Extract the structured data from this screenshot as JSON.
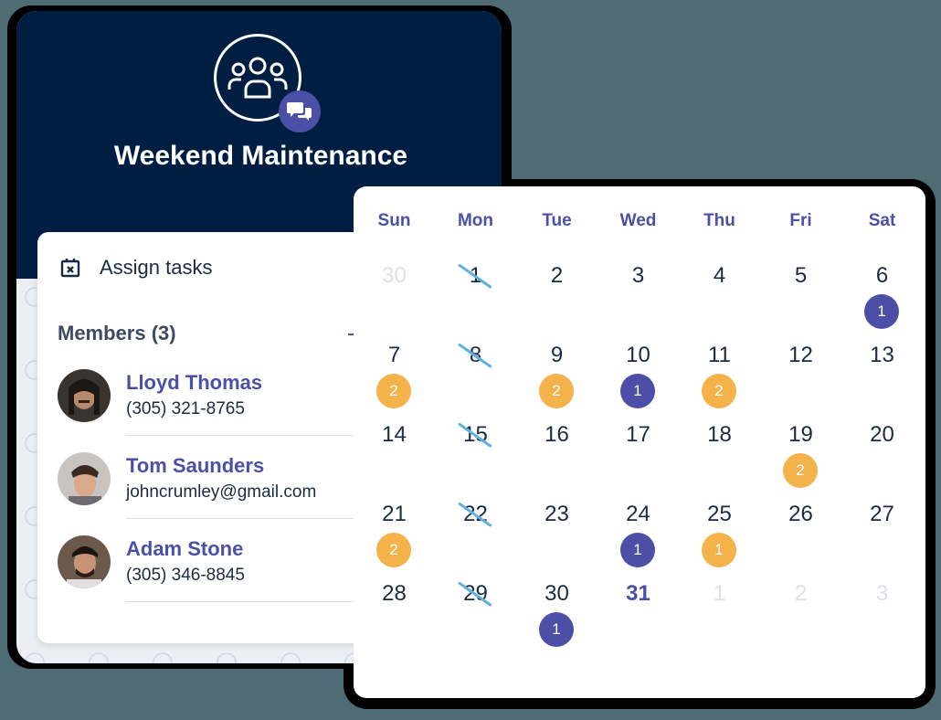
{
  "team": {
    "title": "Weekend Maintenance",
    "icon": "group-icon",
    "badge_icon": "chat-bubbles-icon"
  },
  "card": {
    "assign_label": "Assign tasks",
    "assign_icon": "calendar-x-icon",
    "members_heading": "Members (3)",
    "members": [
      {
        "name": "Lloyd Thomas",
        "contact": "(305) 321-8765"
      },
      {
        "name": "Tom Saunders",
        "contact": "johncrumley@gmail.com"
      },
      {
        "name": "Adam Stone",
        "contact": "(305) 346-8845"
      }
    ]
  },
  "calendar": {
    "weekdays": [
      "Sun",
      "Mon",
      "Tue",
      "Wed",
      "Thu",
      "Fri",
      "Sat"
    ],
    "weeks": [
      [
        {
          "d": "30",
          "muted": true
        },
        {
          "d": "1",
          "strike": true
        },
        {
          "d": "2"
        },
        {
          "d": "3"
        },
        {
          "d": "4"
        },
        {
          "d": "5"
        },
        {
          "d": "6",
          "badge": "1",
          "color": "purple"
        }
      ],
      [
        {
          "d": "7",
          "badge": "2",
          "color": "orange"
        },
        {
          "d": "8",
          "strike": true
        },
        {
          "d": "9",
          "badge": "2",
          "color": "orange"
        },
        {
          "d": "10",
          "badge": "1",
          "color": "purple"
        },
        {
          "d": "11",
          "badge": "2",
          "color": "orange"
        },
        {
          "d": "12"
        },
        {
          "d": "13"
        }
      ],
      [
        {
          "d": "14"
        },
        {
          "d": "15",
          "strike": true
        },
        {
          "d": "16"
        },
        {
          "d": "17"
        },
        {
          "d": "18"
        },
        {
          "d": "19",
          "badge": "2",
          "color": "orange"
        },
        {
          "d": "20"
        }
      ],
      [
        {
          "d": "21",
          "badge": "2",
          "color": "orange"
        },
        {
          "d": "22",
          "strike": true
        },
        {
          "d": "23"
        },
        {
          "d": "24",
          "badge": "1",
          "color": "purple"
        },
        {
          "d": "25",
          "badge": "1",
          "color": "orange"
        },
        {
          "d": "26"
        },
        {
          "d": "27"
        }
      ],
      [
        {
          "d": "28"
        },
        {
          "d": "29",
          "strike": true
        },
        {
          "d": "30",
          "badge": "1",
          "color": "purple"
        },
        {
          "d": "31",
          "today": true
        },
        {
          "d": "1",
          "muted": true
        },
        {
          "d": "2",
          "muted": true
        },
        {
          "d": "3",
          "muted": true
        }
      ]
    ]
  },
  "colors": {
    "header_bg": "#001e42",
    "accent_purple": "#4b50a6",
    "accent_orange": "#f4b24b",
    "strike_blue": "#5fb0de",
    "text_dark": "#1b2a44"
  }
}
